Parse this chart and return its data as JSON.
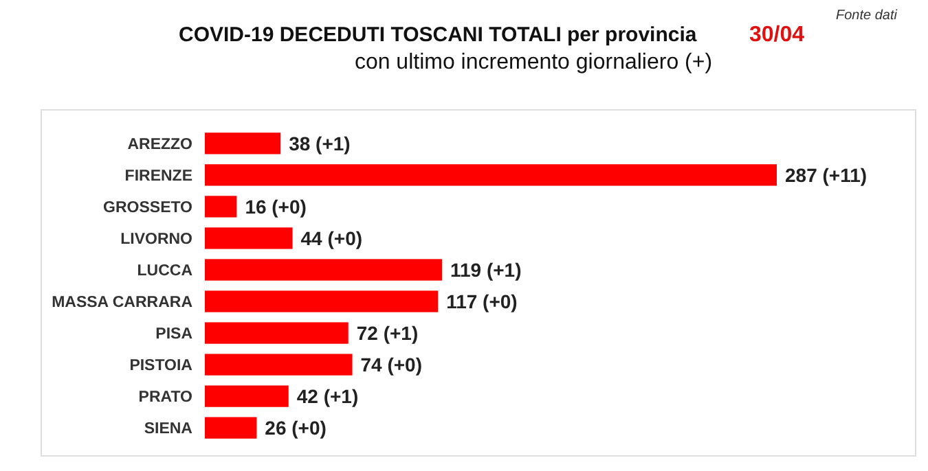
{
  "chart_data": {
    "type": "bar",
    "orientation": "horizontal",
    "title": "COVID-19  DECEDUTI TOSCANI TOTALI per provincia",
    "subtitle": "con ultimo incremento giornaliero  (+)",
    "annotations": [
      "30/04",
      "Fonte dati"
    ],
    "categories": [
      "AREZZO",
      "FIRENZE",
      "GROSSETO",
      "LIVORNO",
      "LUCCA",
      "MASSA CARRARA",
      "PISA",
      "PISTOIA",
      "PRATO",
      "SIENA"
    ],
    "values": [
      38,
      287,
      16,
      44,
      119,
      117,
      72,
      74,
      42,
      26
    ],
    "value_labels": [
      "38 (+1)",
      "287 (+11)",
      "16 (+0)",
      "44 (+0)",
      "119 (+1)",
      "117 (+0)",
      "72 (+1)",
      "74 (+0)",
      "42 (+1)",
      "26 (+0)"
    ],
    "color": "#ff0000"
  }
}
